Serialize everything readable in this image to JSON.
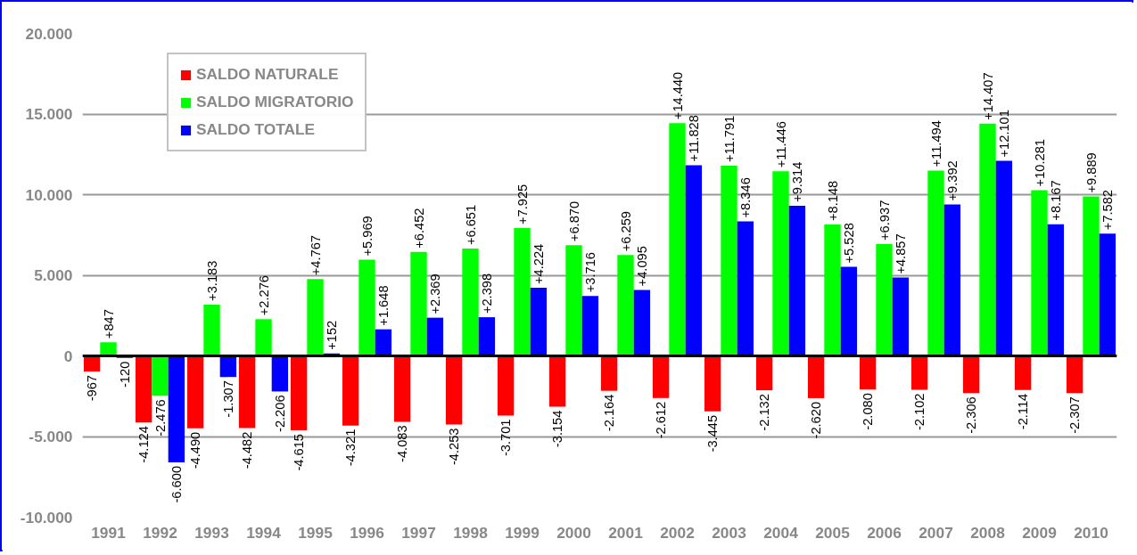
{
  "chart_data": {
    "type": "bar",
    "categories": [
      "1991",
      "1992",
      "1993",
      "1994",
      "1995",
      "1996",
      "1997",
      "1998",
      "1999",
      "2000",
      "2001",
      "2002",
      "2003",
      "2004",
      "2005",
      "2006",
      "2007",
      "2008",
      "2009",
      "2010"
    ],
    "series": [
      {
        "name": "SALDO NATURALE",
        "color": "#ff0000",
        "values": [
          -967,
          -4124,
          -4490,
          -4482,
          -4615,
          -4321,
          -4083,
          -4253,
          -3701,
          -3154,
          -2164,
          -2612,
          -3445,
          -2132,
          -2620,
          -2080,
          -2102,
          -2306,
          -2114,
          -2307
        ],
        "value_labels": [
          "-967",
          "-4.124",
          "-4.490",
          "-4.482",
          "-4.615",
          "-4.321",
          "-4.083",
          "-4.253",
          "-3.701",
          "-3.154",
          "-2.164",
          "-2.612",
          "-3.445",
          "-2.132",
          "-2.620",
          "-2.080",
          "-2.102",
          "-2.306",
          "-2.114",
          "-2.307"
        ]
      },
      {
        "name": "SALDO MIGRATORIO",
        "color": "#00ff00",
        "values": [
          847,
          -2476,
          3183,
          2276,
          4767,
          5969,
          6452,
          6651,
          7925,
          6870,
          6259,
          14440,
          11791,
          11446,
          8148,
          6937,
          11494,
          14407,
          10281,
          9889
        ],
        "value_labels": [
          "+847",
          "-2.476",
          "+3.183",
          "+2.276",
          "+4.767",
          "+5.969",
          "+6.452",
          "+6.651",
          "+7.925",
          "+6.870",
          "+6.259",
          "+14.440",
          "+11.791",
          "+11.446",
          "+8.148",
          "+6.937",
          "+11.494",
          "+14.407",
          "+10.281",
          "+9.889"
        ]
      },
      {
        "name": "SALDO TOTALE",
        "color": "#0000ff",
        "values": [
          -120,
          -6600,
          -1307,
          -2206,
          152,
          1648,
          2369,
          2398,
          4224,
          3716,
          4095,
          11828,
          8346,
          9314,
          5528,
          4857,
          9392,
          12101,
          8167,
          7582
        ],
        "value_labels": [
          "-120",
          "-6.600",
          "-1.307",
          "-2.206",
          "+152",
          "+1.648",
          "+2.369",
          "+2.398",
          "+4.224",
          "+3.716",
          "+4.095",
          "+11.828",
          "+8.346",
          "+9.314",
          "+5.528",
          "+4.857",
          "+9.392",
          "+12.101",
          "+8.167",
          "+7.582"
        ]
      }
    ],
    "ylim": [
      -10000,
      20000
    ],
    "yticks": [
      {
        "value": -10000,
        "label": "-10.000"
      },
      {
        "value": -5000,
        "label": "-5.000"
      },
      {
        "value": 0,
        "label": "0"
      },
      {
        "value": 5000,
        "label": "5.000"
      },
      {
        "value": 10000,
        "label": "10.000"
      },
      {
        "value": 15000,
        "label": "15.000"
      },
      {
        "value": 20000,
        "label": "20.000"
      }
    ],
    "grid": "y",
    "legend": "top left"
  }
}
